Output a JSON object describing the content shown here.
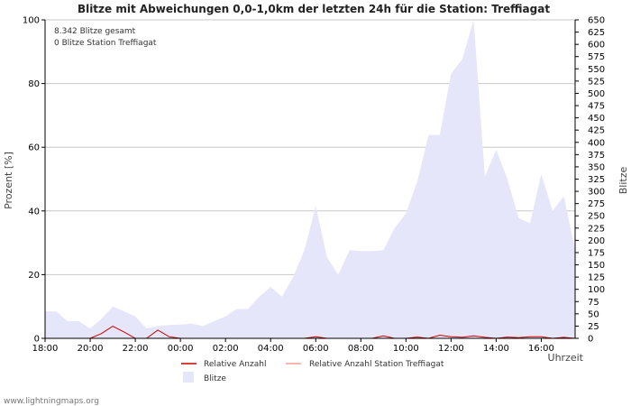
{
  "chart_data": {
    "type": "area",
    "title": "Blitze mit Abweichungen 0,0-1,0km der letzten 24h für die Station: Treffiagat",
    "info_lines": [
      "8.342 Blitze gesamt",
      "0 Blitze Station Treffiagat"
    ],
    "ylabel_left": "Prozent   [%]",
    "ylabel_right": "Blitze",
    "xlabel": "Uhrzeit",
    "ylim_left": [
      0,
      100
    ],
    "ylim_right": [
      0,
      650
    ],
    "yticks_left": [
      "0",
      "20",
      "40",
      "60",
      "80",
      "100"
    ],
    "yticks_right": [
      "0",
      "25",
      "50",
      "75",
      "100",
      "125",
      "150",
      "175",
      "200",
      "225",
      "250",
      "275",
      "300",
      "325",
      "350",
      "375",
      "400",
      "425",
      "450",
      "475",
      "500",
      "525",
      "550",
      "575",
      "600",
      "625",
      "650"
    ],
    "xticks": [
      "18:00",
      "20:00",
      "22:00",
      "00:00",
      "02:00",
      "04:00",
      "06:00",
      "08:00",
      "10:00",
      "12:00",
      "14:00",
      "16:00"
    ],
    "x_hours": [
      0,
      0.5,
      1,
      1.5,
      2,
      2.5,
      3,
      3.5,
      4,
      4.5,
      5,
      5.5,
      6,
      6.5,
      7,
      7.5,
      8,
      8.5,
      9,
      9.5,
      10,
      10.5,
      11,
      11.5,
      12,
      12.5,
      13,
      13.5,
      14,
      14.5,
      15,
      15.5,
      16,
      16.5,
      17,
      17.5,
      18,
      18.5,
      19,
      19.5,
      20,
      20.5,
      21,
      21.5,
      22,
      22.5,
      23,
      23.5
    ],
    "series": [
      {
        "name": "Blitze",
        "axis": "right",
        "color": "#e6e6fa",
        "values": [
          55,
          55,
          35,
          35,
          20,
          40,
          65,
          55,
          45,
          20,
          25,
          27,
          28,
          30,
          25,
          35,
          45,
          60,
          60,
          85,
          105,
          85,
          125,
          180,
          270,
          165,
          130,
          180,
          178,
          178,
          180,
          225,
          255,
          320,
          415,
          415,
          540,
          570,
          650,
          330,
          385,
          325,
          245,
          235,
          335,
          260,
          290,
          180
        ]
      },
      {
        "name": "Relative Anzahl",
        "axis": "left",
        "color": "#cc0000",
        "values": [
          0,
          0,
          0,
          0,
          0,
          1.5,
          3.8,
          2,
          0,
          0,
          2.6,
          0.5,
          0,
          0,
          0,
          0,
          0,
          0,
          0,
          0,
          0,
          0,
          0,
          0,
          0.5,
          0,
          0,
          0,
          0,
          0,
          0.8,
          0,
          0,
          0.4,
          0,
          1,
          0.5,
          0.3,
          0.8,
          0.3,
          0,
          0.4,
          0.2,
          0.5,
          0.5,
          0,
          0.3,
          0
        ]
      },
      {
        "name": "Relative Anzahl Station Treffiagat",
        "axis": "left",
        "color": "#ff9999",
        "values": [
          0,
          0,
          0,
          0,
          0,
          0,
          0,
          0,
          0,
          0,
          0,
          0,
          0,
          0,
          0,
          0,
          0,
          0,
          0,
          0,
          0,
          0,
          0,
          0,
          0,
          0,
          0,
          0,
          0,
          0,
          0,
          0,
          0,
          0,
          0,
          0,
          0,
          0,
          0,
          0,
          0,
          0,
          0,
          0,
          0,
          0,
          0,
          0
        ]
      }
    ],
    "legend": [
      "Relative Anzahl",
      "Relative Anzahl Station Treffiagat",
      "Blitze"
    ],
    "legend_position": "bottom",
    "grid": true
  },
  "footer": "www.lightningmaps.org"
}
